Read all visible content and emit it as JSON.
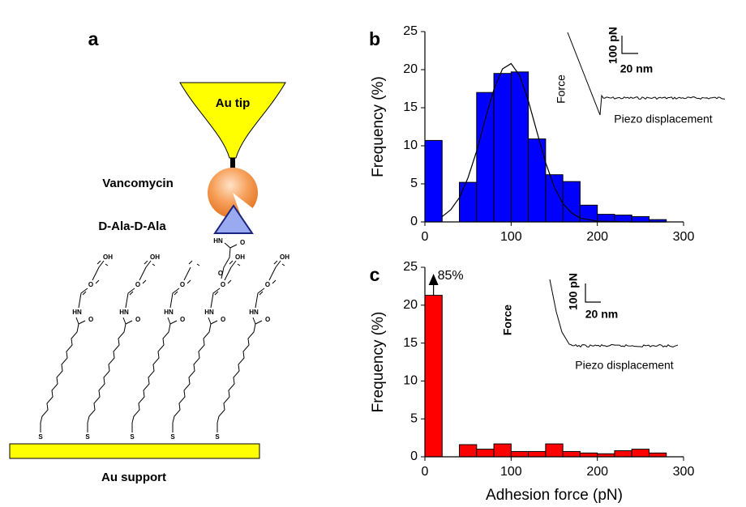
{
  "diagram": {
    "panel_label": "a",
    "tip": "Au tip",
    "receptor": "Vancomycin",
    "ligand": "D-Ala-D-Ala",
    "support": "Au support",
    "linker": {
      "amide_n": "HN",
      "amide_o": "O",
      "ether": "O"
    },
    "chains": [
      {
        "hydroxyl": "OH",
        "ether": "O",
        "amide_n": "HN",
        "amide_o": "O",
        "thiol": "S"
      },
      {
        "hydroxyl": "OH",
        "ether": "O",
        "amide_n": "HN",
        "amide_o": "O",
        "thiol": "S"
      },
      {
        "ether": "O",
        "amide_n": "HN",
        "amide_o": "O",
        "thiol": "S"
      },
      {
        "hydroxyl": "OH",
        "ether": "O",
        "amide_n": "HN",
        "amide_o": "O",
        "thiol": "S"
      },
      {
        "hydroxyl": "OH",
        "ether": "O",
        "amide_n": "HN",
        "amide_o": "O",
        "thiol": "S"
      }
    ]
  },
  "chart_data": [
    {
      "type": "histogram",
      "panel_label": "b",
      "y_label": "Frequency  (%)",
      "bins": [
        0,
        20,
        40,
        60,
        80,
        100,
        120,
        140,
        160,
        180,
        200,
        220,
        240,
        260,
        280
      ],
      "values": [
        10.7,
        0,
        5.2,
        17,
        19.5,
        19.7,
        10.9,
        6.2,
        5.3,
        2.2,
        1.0,
        0.9,
        0.7,
        0.3
      ],
      "color": "#0000ff",
      "fit": {
        "x": [
          20,
          30,
          40,
          50,
          60,
          70,
          80,
          90,
          100,
          110,
          120,
          130,
          140,
          150,
          160,
          170,
          180,
          200,
          240,
          280
        ],
        "values": [
          0.7,
          1.6,
          3.2,
          5.8,
          9.3,
          13.5,
          17.4,
          20.1,
          20.8,
          19.2,
          15.9,
          11.8,
          7.8,
          4.6,
          2.4,
          1.2,
          0.5,
          0.1,
          0,
          0
        ],
        "color": "#000000"
      },
      "xlim": [
        0,
        300
      ],
      "ylim": [
        0,
        25
      ],
      "xticks": [
        0,
        100,
        200,
        300
      ],
      "yticks": [
        0,
        5,
        10,
        15,
        20,
        25
      ],
      "inset": {
        "y_label": "Force",
        "x_label": "Piezo displacement",
        "scale_y": "100 pN",
        "scale_x": "20 nm"
      }
    },
    {
      "type": "histogram",
      "panel_label": "c",
      "y_label": "Frequency  (%)",
      "x_label": "Adhesion force (pN)",
      "bins": [
        0,
        20,
        40,
        60,
        80,
        100,
        120,
        140,
        160,
        180,
        200,
        220,
        240,
        260,
        280
      ],
      "values": [
        21.3,
        0,
        1.6,
        1.0,
        1.7,
        0.7,
        0.7,
        1.7,
        0.7,
        0.5,
        0.4,
        0.8,
        1.0,
        0.5
      ],
      "color": "#ff0000",
      "annotation": "85%",
      "xlim": [
        0,
        300
      ],
      "ylim": [
        0,
        25
      ],
      "xticks": [
        0,
        100,
        200,
        300
      ],
      "yticks": [
        0,
        5,
        10,
        15,
        20,
        25
      ],
      "inset": {
        "y_label": "Force",
        "x_label": "Piezo displacement",
        "scale_y": "100 pN",
        "scale_x": "20 nm"
      }
    }
  ]
}
